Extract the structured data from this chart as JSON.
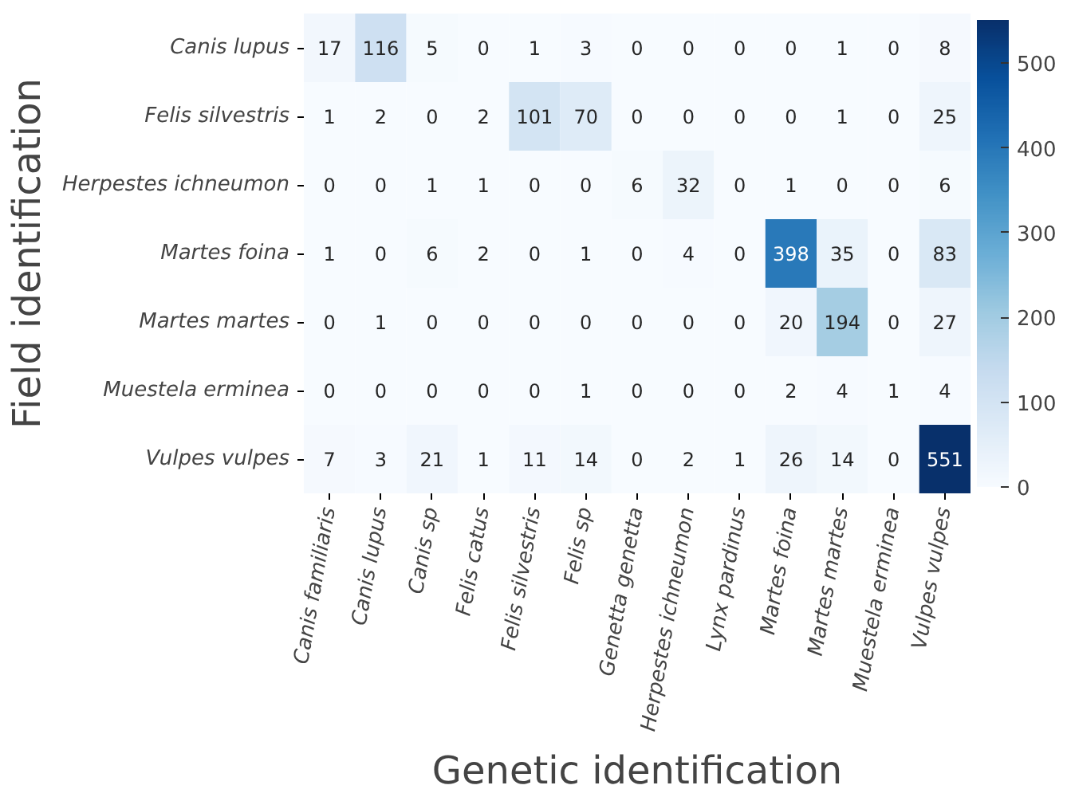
{
  "chart_data": {
    "type": "heatmap",
    "xlabel": "Genetic identification",
    "ylabel": "Field identification",
    "categories": [
      "Canis familiaris",
      "Canis lupus",
      "Canis sp",
      "Felis catus",
      "Felis silvestris",
      "Felis sp",
      "Genetta genetta",
      "Herpestes ichneumon",
      "Lynx pardinus",
      "Martes foina",
      "Martes martes",
      "Muestela erminea",
      "Vulpes vulpes"
    ],
    "y_categories": [
      "Canis lupus",
      "Felis silvestris",
      "Herpestes ichneumon",
      "Martes foina",
      "Martes martes",
      "Muestela erminea",
      "Vulpes vulpes"
    ],
    "cells": [
      [
        17,
        116,
        5,
        0,
        1,
        3,
        0,
        0,
        0,
        0,
        1,
        0,
        8
      ],
      [
        1,
        2,
        0,
        2,
        101,
        70,
        0,
        0,
        0,
        0,
        1,
        0,
        25
      ],
      [
        0,
        0,
        1,
        1,
        0,
        0,
        6,
        32,
        0,
        1,
        0,
        0,
        6
      ],
      [
        1,
        0,
        6,
        2,
        0,
        1,
        0,
        4,
        0,
        398,
        35,
        0,
        83
      ],
      [
        0,
        1,
        0,
        0,
        0,
        0,
        0,
        0,
        0,
        20,
        194,
        0,
        27
      ],
      [
        0,
        0,
        0,
        0,
        0,
        1,
        0,
        0,
        0,
        2,
        4,
        1,
        4
      ],
      [
        7,
        3,
        21,
        1,
        11,
        14,
        0,
        2,
        1,
        26,
        14,
        0,
        551
      ]
    ],
    "clim": [
      0,
      551
    ],
    "cticks": [
      0,
      100,
      200,
      300,
      400,
      500
    ],
    "data_labels": true
  }
}
